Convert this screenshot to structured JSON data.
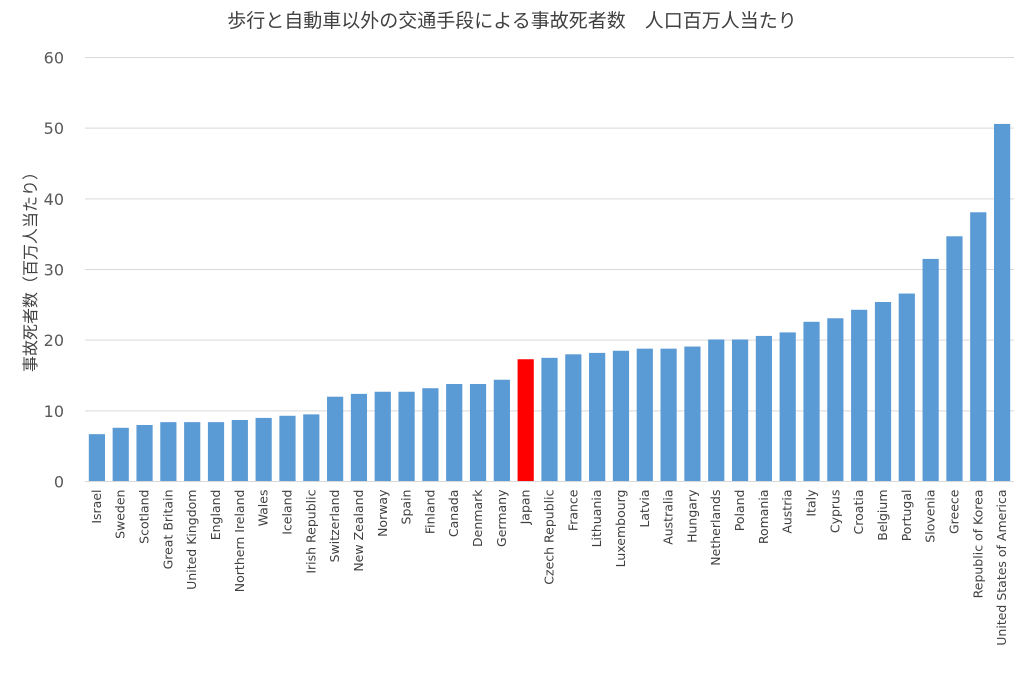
{
  "chart_data": {
    "type": "bar",
    "title": "歩行と自動車以外の交通手段による事故死者数　人口百万人当たり",
    "xlabel": "",
    "ylabel": "事故死者数（百万人当たり）",
    "ylim": [
      0,
      60
    ],
    "yticks": [
      0,
      10,
      20,
      30,
      40,
      50,
      60
    ],
    "grid": true,
    "legend": "none",
    "colors": {
      "bar": "#5B9BD5",
      "highlight": "#FF0000",
      "grid": "#D9D9D9",
      "axis": "#D9D9D9"
    },
    "highlight_category": "Japan",
    "categories": [
      "Israel",
      "Sweden",
      "Scotland",
      "Great Britain",
      "United Kingdom",
      "England",
      "Northern Ireland",
      "Wales",
      "Iceland",
      "Irish Republic",
      "Switzerland",
      "New Zealand",
      "Norway",
      "Spain",
      "Finland",
      "Canada",
      "Denmark",
      "Germany",
      "Japan",
      "Czech Republic",
      "France",
      "Lithuania",
      "Luxembourg",
      "Latvia",
      "Australia",
      "Hungary",
      "Netherlands",
      "Poland",
      "Romania",
      "Austria",
      "Italy",
      "Cyprus",
      "Croatia",
      "Belgium",
      "Portugal",
      "Slovenia",
      "Greece",
      "Republic of Korea",
      "United States of America"
    ],
    "values": [
      6.7,
      7.6,
      8.0,
      8.4,
      8.4,
      8.4,
      8.7,
      9.0,
      9.3,
      9.5,
      12.0,
      12.4,
      12.7,
      12.7,
      13.2,
      13.8,
      13.8,
      14.4,
      17.3,
      17.5,
      18.0,
      18.2,
      18.5,
      18.8,
      18.8,
      19.1,
      20.1,
      20.1,
      20.6,
      21.1,
      22.6,
      23.1,
      24.3,
      25.4,
      26.6,
      31.5,
      34.7,
      38.1,
      50.6
    ]
  }
}
